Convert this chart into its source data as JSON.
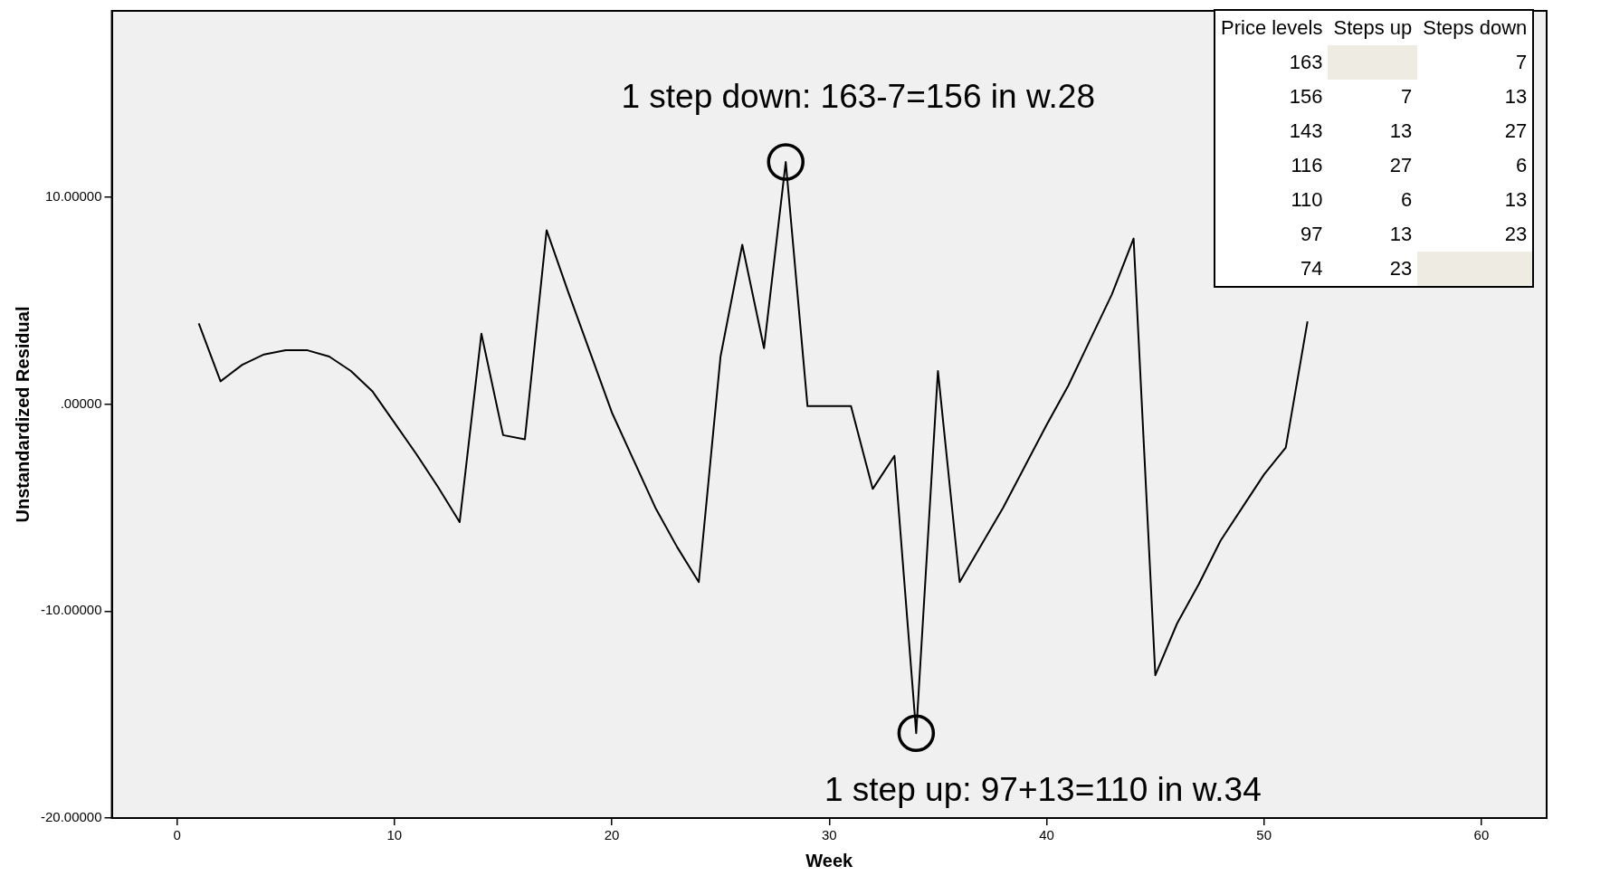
{
  "chart_data": [
    {
      "type": "line",
      "xlabel": "Week",
      "ylabel": "Unstandardized Residual",
      "x": [
        1,
        2,
        3,
        4,
        5,
        6,
        7,
        8,
        9,
        10,
        11,
        12,
        13,
        14,
        15,
        16,
        17,
        18,
        19,
        20,
        21,
        22,
        23,
        24,
        25,
        26,
        27,
        28,
        29,
        30,
        31,
        32,
        33,
        34,
        35,
        36,
        37,
        38,
        39,
        40,
        41,
        42,
        43,
        44,
        45,
        46,
        47,
        48,
        49,
        50,
        51,
        52
      ],
      "series": [
        {
          "color": "#000000",
          "values": [
            3.9,
            1.1,
            1.9,
            2.4,
            2.6,
            2.6,
            2.3,
            1.6,
            0.6,
            -0.9,
            -2.4,
            -4.0,
            -5.7,
            3.4,
            -1.5,
            -1.7,
            8.4,
            5.4,
            2.5,
            -0.4,
            -2.7,
            -5.0,
            -6.9,
            -8.6,
            2.3,
            7.7,
            2.7,
            11.7,
            -0.1,
            -0.1,
            -0.1,
            -4.1,
            -2.5,
            -15.9,
            1.6,
            -8.6,
            -6.8,
            -5.0,
            -3.0,
            -1.0,
            0.9,
            3.1,
            5.3,
            8.0,
            -13.1,
            -10.6,
            -8.7,
            -6.6,
            -5.0,
            -3.4,
            -2.1,
            4.0
          ]
        }
      ],
      "xlim": [
        -3,
        63
      ],
      "xticks": [
        0,
        10,
        20,
        30,
        40,
        50,
        60
      ],
      "ylim": [
        -20,
        19
      ],
      "yticks": [
        {
          "value": -20,
          "label": "-20.00000"
        },
        {
          "value": -10,
          "label": "-10.00000"
        },
        {
          "value": 0,
          "label": ".00000"
        },
        {
          "value": 10,
          "label": "10.00000"
        }
      ],
      "grid": false,
      "legend": false,
      "marker": "none",
      "line_style": "solid",
      "annotations": [
        {
          "text": "1 step down: 163-7=156 in w.28",
          "x": 28,
          "y": 11.7
        },
        {
          "text": "1 step up: 97+13=110 in w.34",
          "x": 34,
          "y": -15.9
        }
      ]
    },
    {
      "type": "other",
      "categories": [
        "Price levels",
        "Steps up",
        "Steps down"
      ],
      "cells": [
        [
          "163",
          null,
          "7"
        ],
        [
          "156",
          "7",
          "13"
        ],
        [
          "143",
          "13",
          "27"
        ],
        [
          "116",
          "27",
          "6"
        ],
        [
          "110",
          "6",
          "13"
        ],
        [
          "97",
          "13",
          "23"
        ],
        [
          "74",
          "23",
          null
        ]
      ]
    }
  ]
}
